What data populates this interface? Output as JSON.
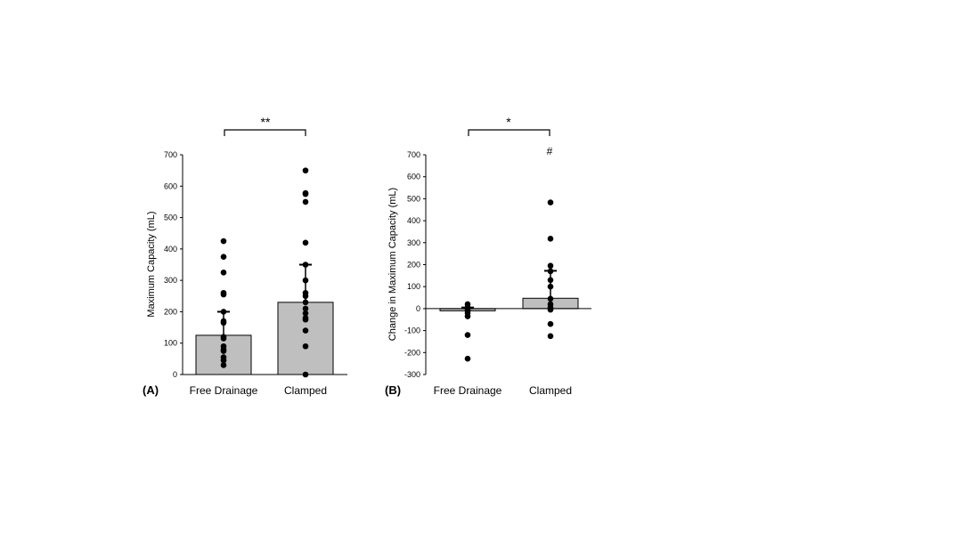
{
  "chart_data": [
    {
      "type": "bar",
      "panel_label": "(A)",
      "ylabel": "Maximum Capacity (mL)",
      "ylim": [
        0,
        700
      ],
      "yticks": [
        0,
        100,
        200,
        300,
        400,
        500,
        600,
        700
      ],
      "categories": [
        "Free Drainage",
        "Clamped"
      ],
      "values": [
        125,
        230
      ],
      "error_upper": [
        200,
        350
      ],
      "points": [
        [
          425,
          375,
          325,
          260,
          255,
          200,
          170,
          165,
          120,
          115,
          90,
          80,
          75,
          55,
          45,
          30
        ],
        [
          650,
          578,
          575,
          550,
          420,
          350,
          300,
          260,
          250,
          230,
          210,
          195,
          180,
          175,
          140,
          90,
          0
        ]
      ],
      "significance": "**",
      "legend": "none",
      "grid": false
    },
    {
      "type": "bar",
      "panel_label": "(B)",
      "ylabel": "Change in Maximum Capacity (mL)",
      "ylim": [
        -300,
        700
      ],
      "yticks": [
        -300,
        -200,
        -100,
        0,
        100,
        200,
        300,
        400,
        500,
        600,
        700
      ],
      "categories": [
        "Free Drainage",
        "Clamped"
      ],
      "values": [
        -10,
        47
      ],
      "error_upper": [
        5,
        172
      ],
      "points": [
        [
          20,
          5,
          -5,
          -10,
          -20,
          -35,
          -120,
          -228
        ],
        [
          483,
          318,
          195,
          170,
          130,
          100,
          45,
          20,
          5,
          -5,
          -70,
          -125
        ]
      ],
      "significance": "*",
      "annotation": "#",
      "legend": "none",
      "grid": false
    }
  ]
}
